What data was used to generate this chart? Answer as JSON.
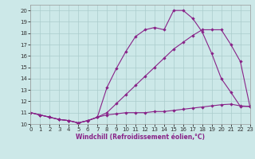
{
  "title": "",
  "xlabel": "Windchill (Refroidissement éolien,°C)",
  "background_color": "#cce8e8",
  "line_color": "#882288",
  "grid_color": "#aacccc",
  "xlim": [
    0,
    23
  ],
  "ylim": [
    10,
    20.5
  ],
  "xticks": [
    0,
    1,
    2,
    3,
    4,
    5,
    6,
    7,
    8,
    9,
    10,
    11,
    12,
    13,
    14,
    15,
    16,
    17,
    18,
    19,
    20,
    21,
    22,
    23
  ],
  "yticks": [
    10,
    11,
    12,
    13,
    14,
    15,
    16,
    17,
    18,
    19,
    20
  ],
  "line1_x": [
    0,
    1,
    2,
    3,
    4,
    5,
    6,
    7,
    8,
    9,
    10,
    11,
    12,
    13,
    14,
    15,
    16,
    17,
    18,
    19,
    20,
    21,
    22,
    23
  ],
  "line1_y": [
    11.0,
    10.8,
    10.6,
    10.4,
    10.3,
    10.1,
    10.3,
    10.6,
    10.8,
    10.9,
    11.0,
    11.0,
    11.0,
    11.1,
    11.1,
    11.2,
    11.3,
    11.4,
    11.5,
    11.6,
    11.7,
    11.75,
    11.6,
    11.55
  ],
  "line2_x": [
    0,
    1,
    2,
    3,
    4,
    5,
    6,
    7,
    8,
    9,
    10,
    11,
    12,
    13,
    14,
    15,
    16,
    17,
    18,
    19,
    20,
    21,
    22,
    23
  ],
  "line2_y": [
    11.0,
    10.8,
    10.6,
    10.4,
    10.3,
    10.1,
    10.3,
    10.6,
    11.0,
    11.8,
    12.6,
    13.4,
    14.2,
    15.0,
    15.8,
    16.6,
    17.2,
    17.8,
    18.3,
    18.3,
    18.3,
    17.0,
    15.5,
    11.55
  ],
  "line3_x": [
    0,
    1,
    2,
    3,
    4,
    5,
    6,
    7,
    8,
    9,
    10,
    11,
    12,
    13,
    14,
    15,
    16,
    17,
    18,
    19,
    20,
    21,
    22,
    23
  ],
  "line3_y": [
    11.0,
    10.8,
    10.6,
    10.4,
    10.3,
    10.1,
    10.3,
    10.6,
    13.2,
    14.9,
    16.4,
    17.7,
    18.3,
    18.5,
    18.3,
    20.0,
    20.0,
    19.3,
    18.1,
    16.2,
    14.0,
    12.8,
    11.55,
    11.55
  ],
  "marker": "D",
  "markersize": 2.2,
  "linewidth": 0.8,
  "tick_labelsize": 5,
  "xlabel_fontsize": 5.5
}
